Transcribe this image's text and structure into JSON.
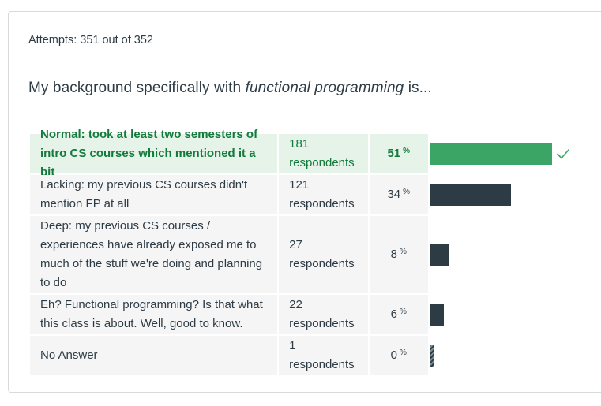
{
  "attempts_text": "Attempts: 351 out of 352",
  "question": {
    "prefix": "My background specifically with ",
    "emphasis": "functional programming",
    "suffix": " is..."
  },
  "answers": [
    {
      "label": "Normal: took at least two semesters of intro CS courses which mentioned it a bit",
      "respondents": "181 respondents",
      "percent": "51",
      "percent_value": 51,
      "correct": true
    },
    {
      "label": "Lacking: my previous CS courses didn't mention FP at all",
      "respondents": "121 respondents",
      "percent": "34",
      "percent_value": 34,
      "correct": false
    },
    {
      "label": "Deep: my previous CS courses / experiences have already exposed me to much of the stuff we're doing and planning to do",
      "respondents": "27 respondents",
      "percent": "8",
      "percent_value": 8,
      "correct": false
    },
    {
      "label": "Eh? Functional programming? Is that what this class is about. Well, good to know.",
      "respondents": "22 respondents",
      "percent": "6",
      "percent_value": 6,
      "correct": false
    },
    {
      "label": "No Answer",
      "respondents": "1 respondents",
      "percent": "0",
      "percent_value": 0,
      "correct": false
    }
  ],
  "percent_symbol": "%",
  "colors": {
    "correct_bar": "#3ba566",
    "bar": "#2d3b45",
    "correct_text": "#127a3a"
  },
  "icons": {
    "correct": "check-icon"
  }
}
